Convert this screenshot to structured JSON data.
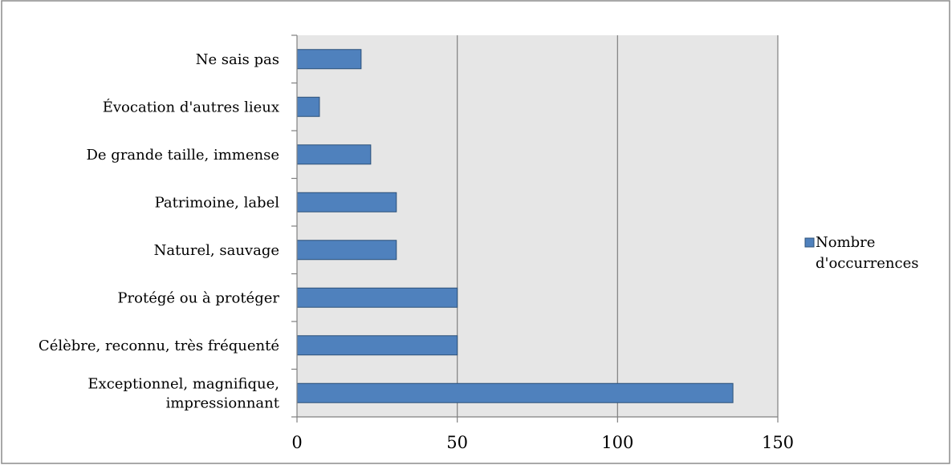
{
  "chart_data": {
    "type": "bar",
    "orientation": "horizontal",
    "categories": [
      "Exceptionnel, magnifique, impressionnant",
      "Célèbre, reconnu, très fréquenté",
      "Protégé ou à protéger",
      "Naturel, sauvage",
      "Patrimoine, label",
      "De grande taille, immense",
      "Évocation d'autres lieux",
      "Ne sais pas"
    ],
    "category_label_lines": [
      [
        "Exceptionnel, magnifique,",
        "impressionnant"
      ],
      [
        "Célèbre, reconnu, très fréquenté"
      ],
      [
        "Protégé ou à protéger"
      ],
      [
        "Naturel, sauvage"
      ],
      [
        "Patrimoine, label"
      ],
      [
        "De grande taille, immense"
      ],
      [
        "Évocation d'autres lieux"
      ],
      [
        "Ne sais pas"
      ]
    ],
    "series": [
      {
        "name": "Nombre d'occurrences",
        "values": [
          136,
          50,
          50,
          31,
          31,
          23,
          7,
          20
        ]
      }
    ],
    "legend_lines": [
      "Nombre",
      "d'occurrences"
    ],
    "xlim": [
      0,
      150
    ],
    "xticks": [
      0,
      50,
      100,
      150
    ],
    "grid": true,
    "legend": "right",
    "colors": {
      "bar_fill": "#4f81bd",
      "bar_stroke": "#2c5178",
      "plot_bg": "#e6e6e6",
      "grid": "#808080",
      "frame": "#8c8c8c"
    }
  }
}
